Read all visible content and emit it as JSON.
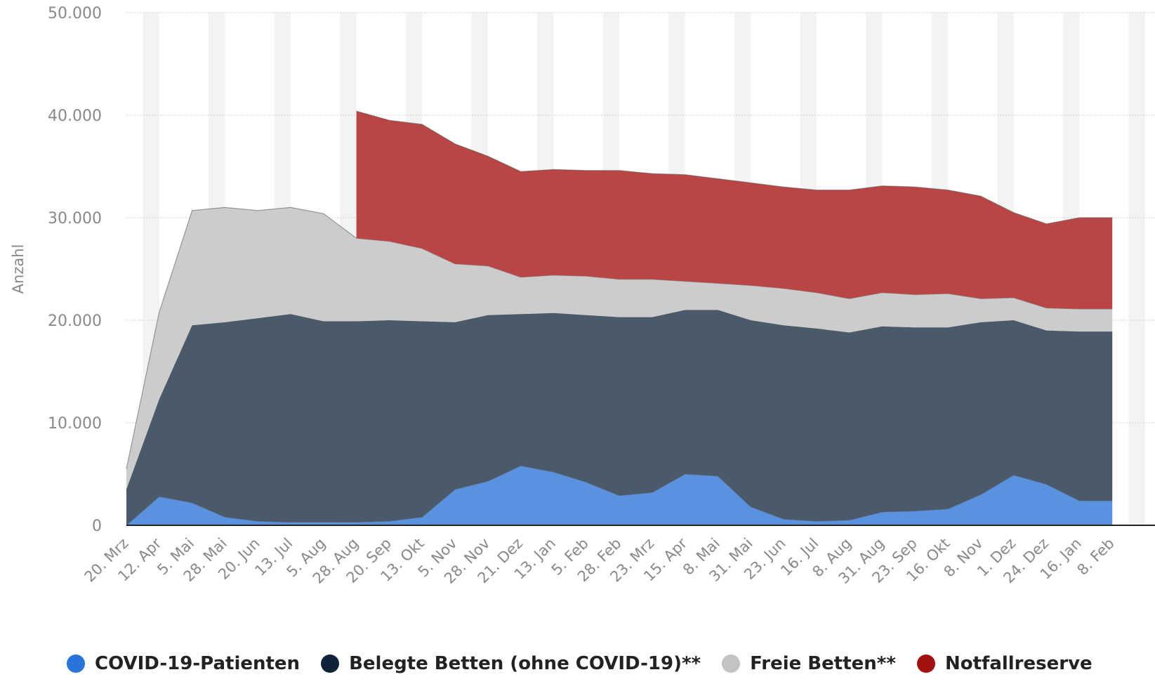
{
  "chart_data": {
    "type": "area",
    "stacked": true,
    "title": "",
    "xlabel": "",
    "ylabel": "Anzahl",
    "ylim": [
      0,
      50000
    ],
    "y_ticks": [
      "0",
      "10.000",
      "20.000",
      "30.000",
      "40.000",
      "50.000"
    ],
    "y_tick_values": [
      0,
      10000,
      20000,
      30000,
      40000,
      50000
    ],
    "grid": true,
    "legend_position": "bottom",
    "categories": [
      "20. Mrz",
      "12. Apr",
      "5. Mai",
      "28. Mai",
      "20. Jun",
      "13. Jul",
      "5. Aug",
      "28. Aug",
      "20. Sep",
      "13. Okt",
      "5. Nov",
      "28. Nov",
      "21. Dez",
      "13. Jan",
      "5. Feb",
      "28. Feb",
      "23. Mrz",
      "15. Apr",
      "8. Mai",
      "31. Mai",
      "23. Jun",
      "16. Jul",
      "8. Aug",
      "31. Aug",
      "23. Sep",
      "16. Okt",
      "8. Nov",
      "1. Dez",
      "24. Dez",
      "16. Jan",
      "8. Feb"
    ],
    "series": [
      {
        "name": "COVID-19-Patienten",
        "color": "#5b92e0",
        "values": [
          0,
          2800,
          2200,
          800,
          400,
          300,
          300,
          300,
          400,
          800,
          3500,
          4300,
          5800,
          5200,
          4200,
          2900,
          3200,
          5000,
          4800,
          1800,
          600,
          400,
          500,
          1300,
          1400,
          1600,
          3000,
          4900,
          4000,
          2400,
          2400
        ]
      },
      {
        "name": "Belegte Betten (ohne COVID-19)**",
        "color": "#4a5a6b",
        "values": [
          3500,
          9500,
          17300,
          19000,
          19800,
          20300,
          19600,
          19600,
          19600,
          19100,
          16300,
          16200,
          14800,
          15500,
          16300,
          17400,
          17100,
          16000,
          16200,
          18200,
          18900,
          18800,
          18300,
          18100,
          17900,
          17700,
          16800,
          15100,
          15000,
          16500,
          16500
        ]
      },
      {
        "name": "Freie Betten**",
        "color": "#cccccc",
        "values": [
          2000,
          8500,
          11200,
          11200,
          10500,
          10400,
          10500,
          8100,
          7700,
          7100,
          5700,
          4800,
          3600,
          3700,
          3800,
          3700,
          3700,
          2800,
          2600,
          3400,
          3600,
          3500,
          3300,
          3300,
          3200,
          3300,
          2300,
          2200,
          2200,
          2200,
          2200
        ]
      },
      {
        "name": "Notfallreserve",
        "color": "#b94545",
        "values": [
          0,
          0,
          0,
          0,
          0,
          0,
          0,
          12400,
          11800,
          12100,
          11700,
          10700,
          10300,
          10300,
          10300,
          10600,
          10300,
          10400,
          10200,
          10000,
          9900,
          10000,
          10600,
          10400,
          10500,
          10100,
          10000,
          8300,
          8200,
          8900,
          8900
        ]
      }
    ]
  },
  "legend": [
    {
      "label": "COVID-19-Patienten",
      "color": "#2a73d9"
    },
    {
      "label": "Belegte Betten (ohne COVID-19)**",
      "color": "#0f2238"
    },
    {
      "label": "Freie Betten**",
      "color": "#c3c3c3"
    },
    {
      "label": "Notfallreserve",
      "color": "#a31010"
    }
  ]
}
